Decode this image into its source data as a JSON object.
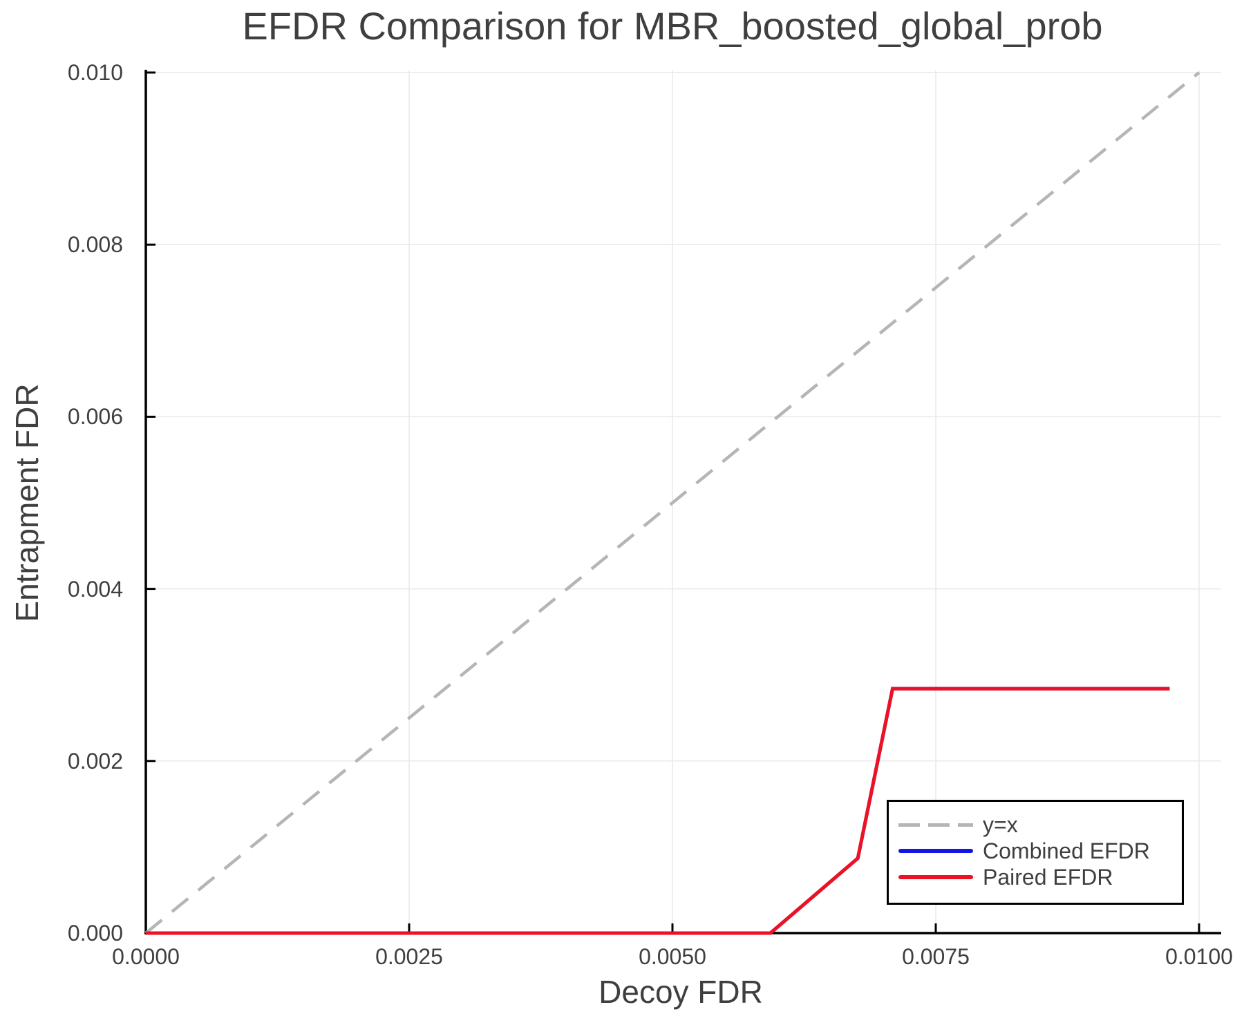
{
  "figure": {
    "background": "#ffffff"
  },
  "chart_data": {
    "type": "line",
    "title": "EFDR Comparison for MBR_boosted_global_prob",
    "xlabel": "Decoy FDR",
    "ylabel": "Entrapment FDR",
    "xlim": [
      0.0,
      0.01
    ],
    "ylim": [
      0.0,
      0.01
    ],
    "xticks": [
      0.0,
      0.0025,
      0.005,
      0.0075,
      0.01
    ],
    "xtick_labels": [
      "0.0000",
      "0.0025",
      "0.0050",
      "0.0075",
      "0.0100"
    ],
    "yticks": [
      0.0,
      0.002,
      0.004,
      0.006,
      0.008,
      0.01
    ],
    "ytick_labels": [
      "0.000",
      "0.002",
      "0.004",
      "0.006",
      "0.008",
      "0.010"
    ],
    "grid": true,
    "grid_color": "#e9e9e9",
    "axis_color": "#000000",
    "text_color": "#3f3f3f",
    "legend": {
      "position": "lower right",
      "border_color": "#000000",
      "background": "#ffffff"
    },
    "series": [
      {
        "name": "y=x",
        "style": "dashed",
        "color": "#b5b5b5",
        "width": 4.5,
        "x": [
          0.0,
          0.01
        ],
        "y": [
          0.0,
          0.01
        ]
      },
      {
        "name": "Combined EFDR",
        "style": "solid",
        "color": "#1414e8",
        "width": 5,
        "x": [
          0.0,
          0.00593,
          0.00676,
          0.00709,
          0.00972
        ],
        "y": [
          0.0,
          0.0,
          0.00087,
          0.00284,
          0.00284
        ]
      },
      {
        "name": "Paired EFDR",
        "style": "solid",
        "color": "#ee1122",
        "width": 5,
        "x": [
          0.0,
          0.00593,
          0.00676,
          0.00709,
          0.00972
        ],
        "y": [
          0.0,
          0.0,
          0.00087,
          0.00284,
          0.00284
        ]
      }
    ]
  }
}
